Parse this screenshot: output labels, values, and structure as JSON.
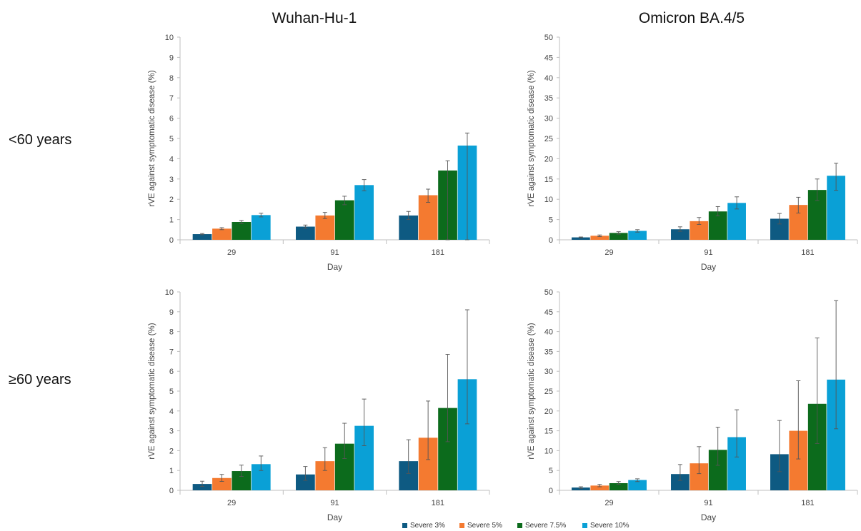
{
  "column_titles": [
    "Wuhan-Hu-1",
    "Omicron BA.4/5"
  ],
  "row_labels": [
    "<60 years",
    "≥60 years"
  ],
  "colors": {
    "Severe 3%": "#0e5a82",
    "Severe 5%": "#f47a30",
    "Severe 7.5%": "#0c6b1c",
    "Severe 10%": "#0aa0d6"
  },
  "legend": [
    "Severe 3%",
    "Severe 5%",
    "Severe 7.5%",
    "Severe 10%"
  ],
  "chart_data": [
    {
      "type": "bar",
      "title": "Wuhan-Hu-1",
      "row_label": "<60 years",
      "xlabel": "Day",
      "ylabel": "rVE against symptomatic disease (%)",
      "ylim": [
        0,
        10
      ],
      "yticks": [
        0,
        1,
        2,
        3,
        4,
        5,
        6,
        7,
        8,
        9,
        10
      ],
      "categories": [
        "29",
        "91",
        "181"
      ],
      "series": [
        {
          "name": "Severe 3%",
          "values": [
            0.28,
            0.65,
            1.2
          ],
          "error_low": [
            0.25,
            0.57,
            1.0
          ],
          "error_high": [
            0.31,
            0.73,
            1.4
          ]
        },
        {
          "name": "Severe 5%",
          "values": [
            0.55,
            1.2,
            2.2
          ],
          "error_low": [
            0.5,
            1.05,
            1.85
          ],
          "error_high": [
            0.6,
            1.35,
            2.5
          ]
        },
        {
          "name": "Severe 7.5%",
          "values": [
            0.88,
            1.95,
            3.42
          ],
          "error_low": [
            0.8,
            1.73,
            0.0
          ],
          "error_high": [
            0.95,
            2.15,
            3.9
          ]
        },
        {
          "name": "Severe 10%",
          "values": [
            1.22,
            2.7,
            4.65
          ],
          "error_low": [
            1.13,
            2.42,
            0.0
          ],
          "error_high": [
            1.31,
            2.97,
            5.27
          ]
        }
      ]
    },
    {
      "type": "bar",
      "title": "Omicron BA.4/5",
      "row_label": "<60 years",
      "xlabel": "Day",
      "ylabel": "rVE against symptomatic disease (%)",
      "ylim": [
        0,
        50
      ],
      "yticks": [
        0,
        5,
        10,
        15,
        20,
        25,
        30,
        35,
        40,
        45,
        50
      ],
      "categories": [
        "29",
        "91",
        "181"
      ],
      "series": [
        {
          "name": "Severe 3%",
          "values": [
            0.6,
            2.6,
            5.2
          ],
          "error_low": [
            0.5,
            2.1,
            3.9
          ],
          "error_high": [
            0.7,
            3.2,
            6.5
          ]
        },
        {
          "name": "Severe 5%",
          "values": [
            1.0,
            4.6,
            8.6
          ],
          "error_low": [
            0.8,
            3.8,
            6.6
          ],
          "error_high": [
            1.2,
            5.5,
            10.5
          ]
        },
        {
          "name": "Severe 7.5%",
          "values": [
            1.7,
            7.0,
            12.3
          ],
          "error_low": [
            1.4,
            5.9,
            9.7
          ],
          "error_high": [
            2.0,
            8.2,
            15.0
          ]
        },
        {
          "name": "Severe 10%",
          "values": [
            2.2,
            9.1,
            15.8
          ],
          "error_low": [
            1.9,
            7.6,
            12.2
          ],
          "error_high": [
            2.5,
            10.6,
            18.9
          ]
        }
      ]
    },
    {
      "type": "bar",
      "title": "Wuhan-Hu-1",
      "row_label": "≥60 years",
      "xlabel": "Day",
      "ylabel": "rVE against symptomatic disease (%)",
      "ylim": [
        0,
        10
      ],
      "yticks": [
        0,
        1,
        2,
        3,
        4,
        5,
        6,
        7,
        8,
        9,
        10
      ],
      "categories": [
        "29",
        "91",
        "181"
      ],
      "series": [
        {
          "name": "Severe 3%",
          "values": [
            0.32,
            0.8,
            1.47
          ],
          "error_low": [
            0.2,
            0.5,
            0.85
          ],
          "error_high": [
            0.46,
            1.2,
            2.55
          ]
        },
        {
          "name": "Severe 5%",
          "values": [
            0.62,
            1.47,
            2.65
          ],
          "error_low": [
            0.45,
            1.0,
            1.55
          ],
          "error_high": [
            0.8,
            2.15,
            4.5
          ]
        },
        {
          "name": "Severe 7.5%",
          "values": [
            0.97,
            2.35,
            4.15
          ],
          "error_low": [
            0.7,
            1.6,
            2.45
          ],
          "error_high": [
            1.27,
            3.38,
            6.85
          ]
        },
        {
          "name": "Severe 10%",
          "values": [
            1.32,
            3.25,
            5.6
          ],
          "error_low": [
            1.0,
            2.25,
            3.35
          ],
          "error_high": [
            1.73,
            4.6,
            9.1
          ]
        }
      ]
    },
    {
      "type": "bar",
      "title": "Omicron BA.4/5",
      "row_label": "≥60 years",
      "xlabel": "Day",
      "ylabel": "rVE against symptomatic disease (%)",
      "ylim": [
        0,
        50
      ],
      "yticks": [
        0,
        5,
        10,
        15,
        20,
        25,
        30,
        35,
        40,
        45,
        50
      ],
      "categories": [
        "29",
        "91",
        "181"
      ],
      "series": [
        {
          "name": "Severe 3%",
          "values": [
            0.7,
            4.1,
            9.1
          ],
          "error_low": [
            0.5,
            2.5,
            4.7
          ],
          "error_high": [
            0.9,
            6.5,
            17.6
          ]
        },
        {
          "name": "Severe 5%",
          "values": [
            1.2,
            6.8,
            15.0
          ],
          "error_low": [
            0.9,
            4.2,
            7.9
          ],
          "error_high": [
            1.5,
            11.0,
            27.6
          ]
        },
        {
          "name": "Severe 7.5%",
          "values": [
            1.8,
            10.2,
            21.8
          ],
          "error_low": [
            1.5,
            6.3,
            11.8
          ],
          "error_high": [
            2.2,
            15.9,
            38.4
          ]
        },
        {
          "name": "Severe 10%",
          "values": [
            2.6,
            13.4,
            27.9
          ],
          "error_low": [
            2.2,
            8.4,
            15.5
          ],
          "error_high": [
            2.9,
            20.3,
            47.8
          ]
        }
      ]
    }
  ]
}
